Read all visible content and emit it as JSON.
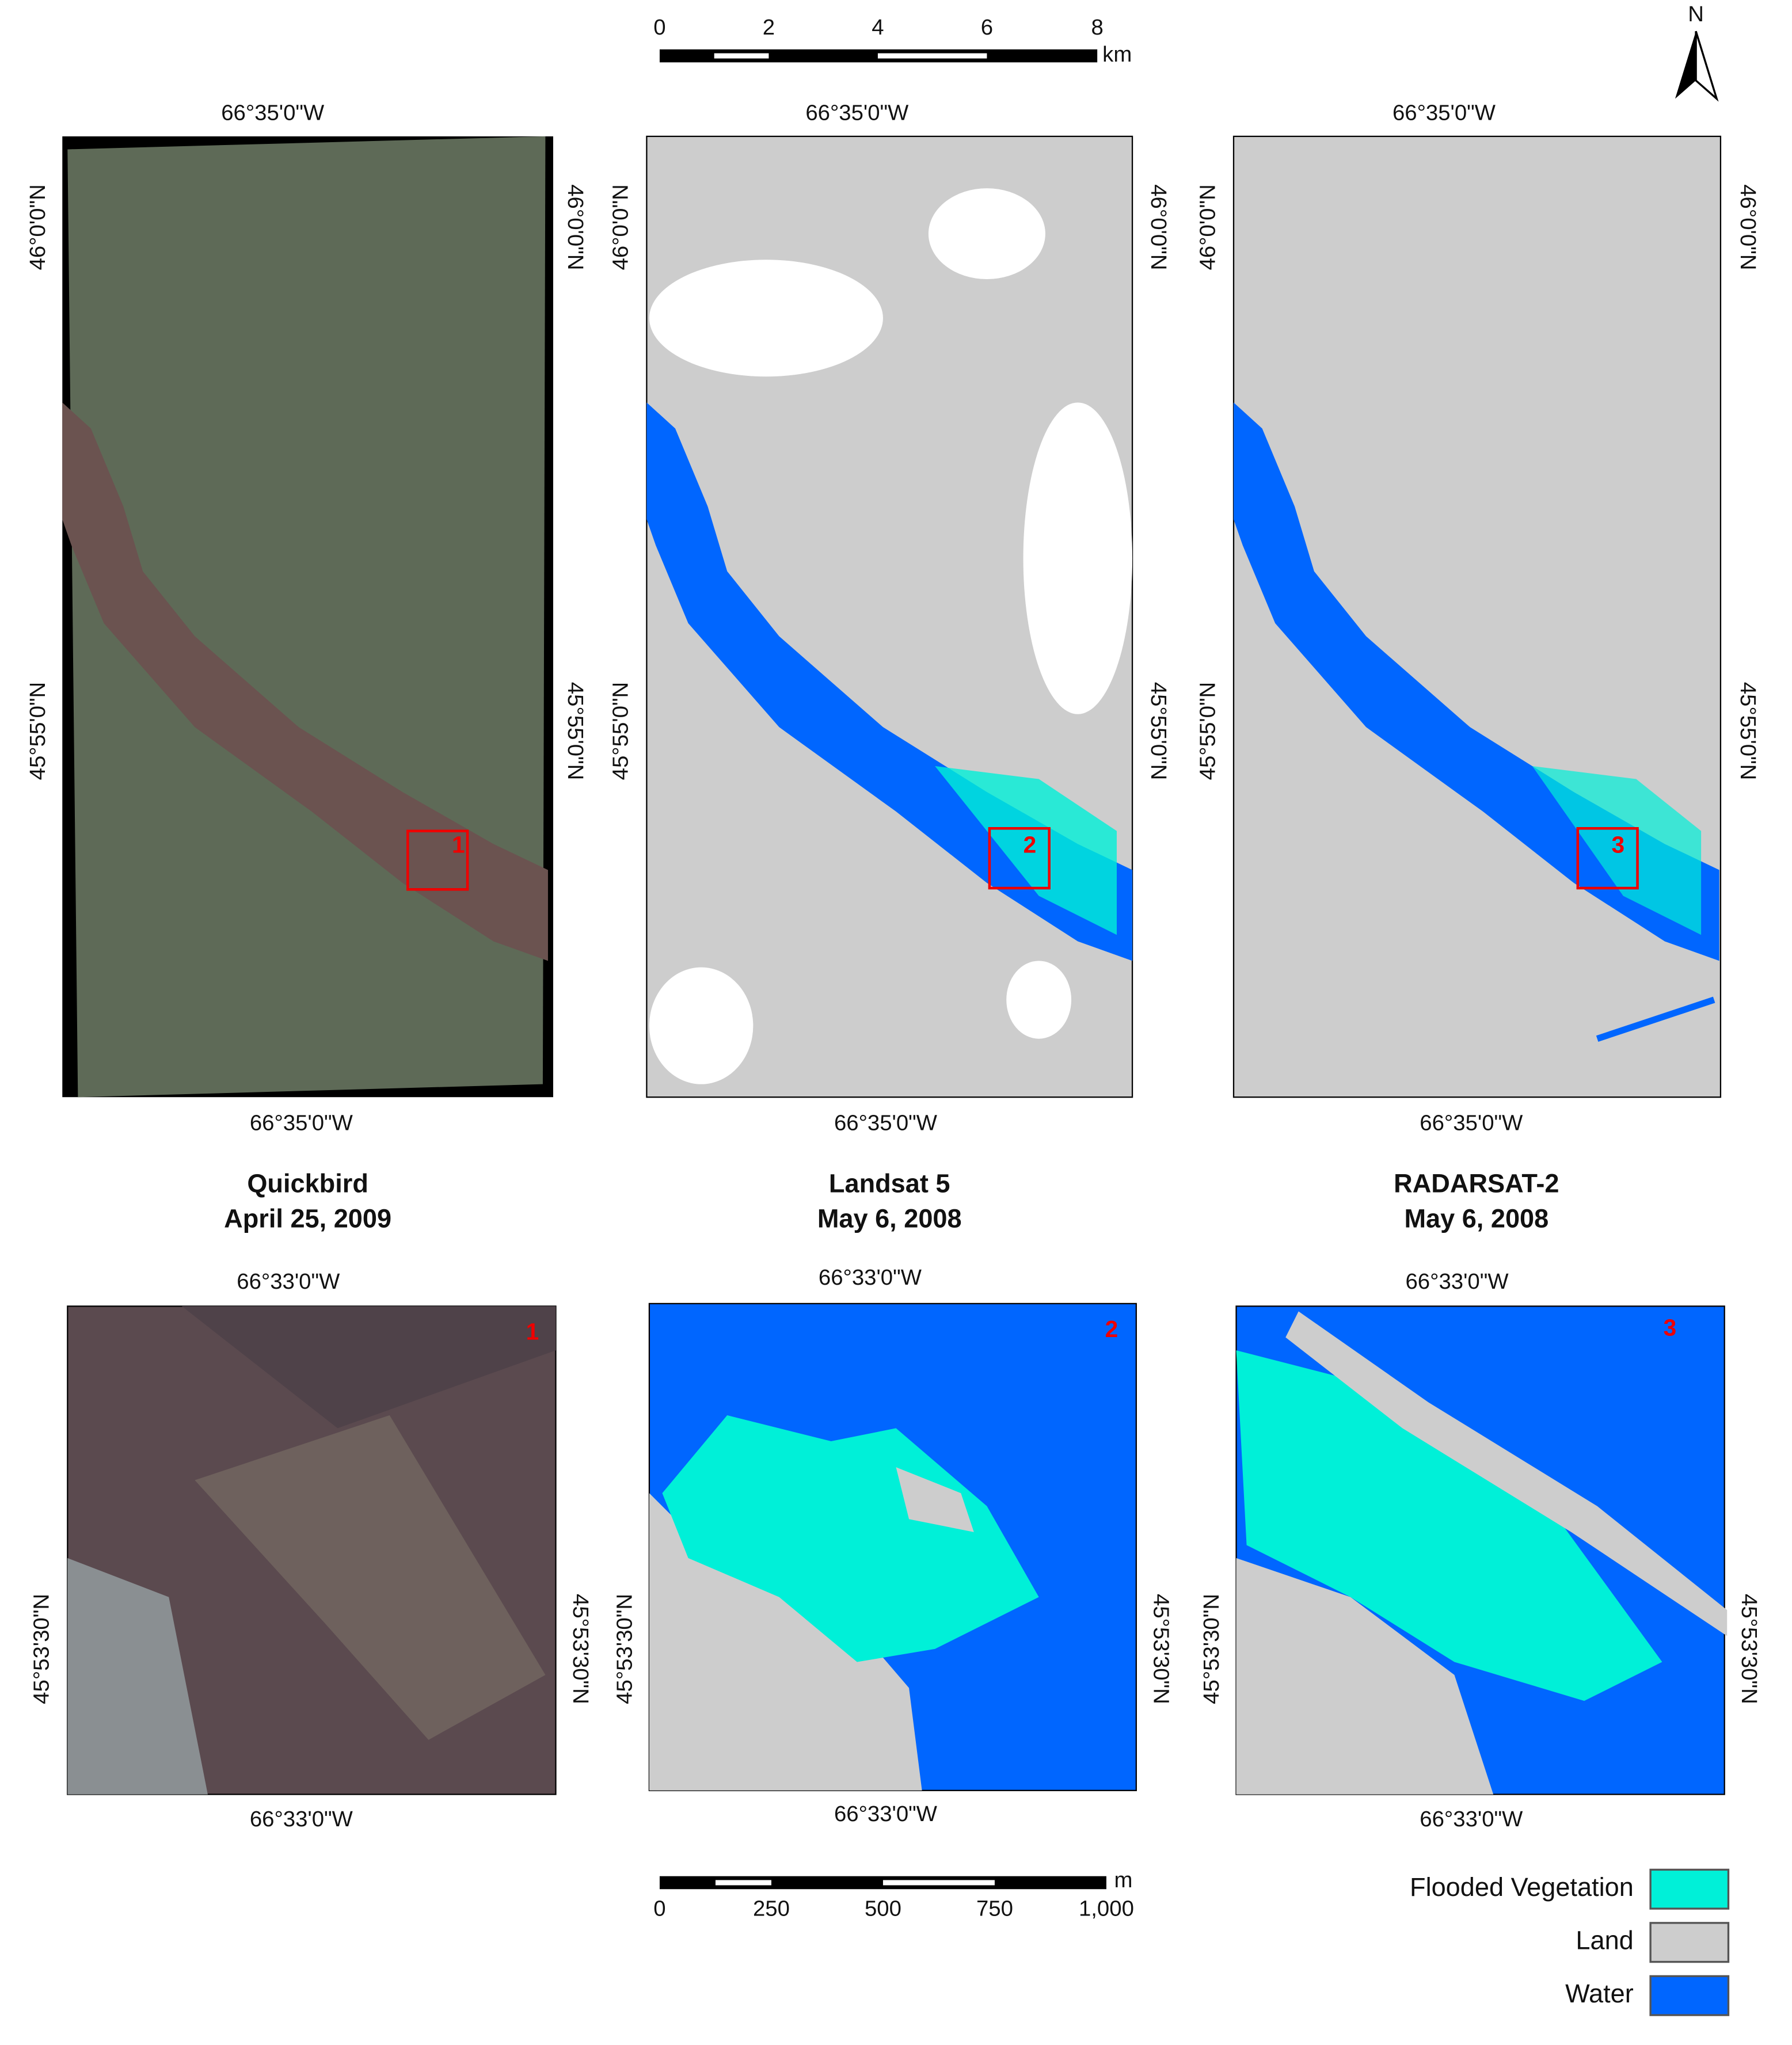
{
  "scale_top": {
    "ticks": [
      "0",
      "2",
      "4",
      "6",
      "8"
    ],
    "unit": "km"
  },
  "north": "N",
  "panels_top": [
    {
      "lon_top": "66°35'0\"W",
      "lon_bottom": "66°35'0\"W",
      "lat_left": [
        "46°0'0\"N",
        "45°55'0\"N"
      ],
      "lat_right": [
        "46°0'0\"N",
        "45°55'0\"N"
      ],
      "box_label": "1"
    },
    {
      "lon_top": "66°35'0\"W",
      "lon_bottom": "66°35'0\"W",
      "lat_left": [
        "46°0'0\"N",
        "45°55'0\"N"
      ],
      "lat_right": [
        "46°0'0\"N",
        "45°55'0\"N"
      ],
      "box_label": "2"
    },
    {
      "lon_top": "66°35'0\"W",
      "lon_bottom": "66°35'0\"W",
      "lat_left": [
        "46°0'0\"N",
        "45°55'0\"N"
      ],
      "lat_right": [
        "46°0'0\"N",
        "45°55'0\"N"
      ],
      "box_label": "3"
    }
  ],
  "captions": [
    {
      "name": "Quickbird",
      "date": "April 25, 2009"
    },
    {
      "name": "Landsat 5",
      "date": "May 6, 2008"
    },
    {
      "name": "RADARSAT-2",
      "date": "May 6, 2008"
    }
  ],
  "panels_bottom": [
    {
      "lon_top": "66°33'0\"W",
      "lon_bottom": "66°33'0\"W",
      "lat_left": "45°53'30\"N",
      "lat_right": "45°53'30\"N",
      "label": "1"
    },
    {
      "lon_top": "66°33'0\"W",
      "lon_bottom": "66°33'0\"W",
      "lat_left": "45°53'30\"N",
      "lat_right": "45°53'30\"N",
      "label": "2"
    },
    {
      "lon_top": "66°33'0\"W",
      "lon_bottom": "66°33'0\"W",
      "lat_left": "45°53'30\"N",
      "lat_right": "45°53'30\"N",
      "label": "3"
    }
  ],
  "scale_bottom": {
    "ticks": [
      "0",
      "250",
      "500",
      "750",
      "1,000"
    ],
    "unit": "m"
  },
  "legend": [
    {
      "label": "Flooded Vegetation",
      "color": "#00f0d8"
    },
    {
      "label": "Land",
      "color": "#cdcdcd"
    },
    {
      "label": "Water",
      "color": "#0066ff"
    }
  ]
}
